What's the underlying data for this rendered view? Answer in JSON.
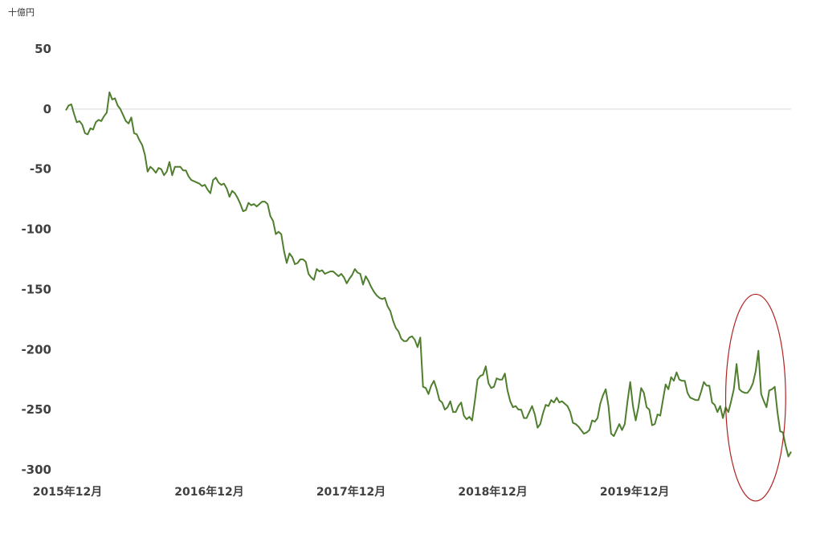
{
  "chart_data": {
    "type": "line",
    "title": "",
    "unit_label": "十億円",
    "xlabel": "",
    "ylabel": "",
    "ylim": [
      -300,
      50
    ],
    "yticks": [
      50,
      0,
      -50,
      -100,
      -150,
      -200,
      -250,
      -300
    ],
    "ytick_labels": [
      "50",
      "0",
      "-50",
      "-100",
      "-150",
      "-200",
      "-250",
      "-300"
    ],
    "xticks": [
      {
        "label": "2015年12月",
        "index": 0
      },
      {
        "label": "2016年12月",
        "index": 52
      },
      {
        "label": "2017年12月",
        "index": 104
      },
      {
        "label": "2018年12月",
        "index": 156
      },
      {
        "label": "2019年12月",
        "index": 208
      }
    ],
    "grid": false,
    "legend": "none",
    "series": [
      {
        "color": "#4f7f2e",
        "values": [
          -1,
          3,
          4,
          -4,
          -11,
          -10,
          -13,
          -20,
          -21,
          -16,
          -17,
          -11,
          -9,
          -10,
          -6,
          -3,
          14,
          8,
          9,
          3,
          0,
          -5,
          -10,
          -12,
          -7,
          -20,
          -21,
          -26,
          -30,
          -38,
          -52,
          -48,
          -50,
          -53,
          -49,
          -50,
          -55,
          -52,
          -44,
          -55,
          -48,
          -48,
          -48,
          -51,
          -51,
          -56,
          -59,
          -60,
          -61,
          -62,
          -64,
          -63,
          -67,
          -70,
          -59,
          -57,
          -61,
          -63,
          -62,
          -66,
          -73,
          -68,
          -70,
          -74,
          -79,
          -85,
          -84,
          -78,
          -80,
          -79,
          -81,
          -79,
          -77,
          -77,
          -79,
          -89,
          -93,
          -104,
          -102,
          -104,
          -118,
          -128,
          -120,
          -123,
          -129,
          -128,
          -125,
          -125,
          -127,
          -137,
          -140,
          -142,
          -133,
          -135,
          -134,
          -137,
          -136,
          -135,
          -135,
          -137,
          -139,
          -137,
          -140,
          -145,
          -141,
          -138,
          -133,
          -136,
          -137,
          -146,
          -139,
          -143,
          -148,
          -152,
          -155,
          -157,
          -158,
          -157,
          -164,
          -168,
          -176,
          -182,
          -185,
          -191,
          -193,
          -193,
          -190,
          -189,
          -192,
          -198,
          -190,
          -231,
          -232,
          -237,
          -230,
          -226,
          -233,
          -242,
          -244,
          -250,
          -248,
          -243,
          -252,
          -252,
          -247,
          -244,
          -255,
          -258,
          -256,
          -259,
          -243,
          -225,
          -222,
          -221,
          -214,
          -228,
          -232,
          -231,
          -224,
          -225,
          -225,
          -220,
          -234,
          -243,
          -248,
          -247,
          -250,
          -250,
          -257,
          -257,
          -252,
          -247,
          -254,
          -265,
          -262,
          -253,
          -246,
          -247,
          -242,
          -244,
          -240,
          -244,
          -243,
          -245,
          -247,
          -252,
          -261,
          -262,
          -264,
          -267,
          -270,
          -269,
          -267,
          -259,
          -260,
          -257,
          -245,
          -238,
          -233,
          -247,
          -270,
          -272,
          -267,
          -262,
          -267,
          -262,
          -243,
          -227,
          -247,
          -259,
          -248,
          -232,
          -236,
          -248,
          -250,
          -263,
          -262,
          -254,
          -255,
          -242,
          -229,
          -233,
          -223,
          -226,
          -219,
          -225,
          -226,
          -226,
          -236,
          -240,
          -241,
          -242,
          -242,
          -235,
          -227,
          -230,
          -230,
          -244,
          -246,
          -252,
          -247,
          -257,
          -248,
          -252,
          -243,
          -233,
          -212,
          -233,
          -235,
          -236,
          -236,
          -233,
          -228,
          -218,
          -201,
          -237,
          -243,
          -248,
          -234,
          -233,
          -231,
          -252,
          -268,
          -269,
          -280,
          -289,
          -285
        ]
      }
    ],
    "annotation": {
      "shape": "ellipse",
      "color": "#b22222",
      "center_index": 253,
      "center_value": -240,
      "half_width_index": 11,
      "half_height_value": 86
    }
  }
}
